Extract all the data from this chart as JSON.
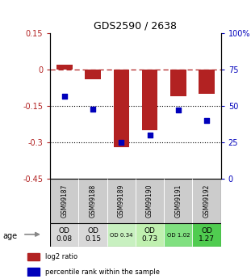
{
  "title": "GDS2590 / 2638",
  "samples": [
    "GSM99187",
    "GSM99188",
    "GSM99189",
    "GSM99190",
    "GSM99191",
    "GSM99192"
  ],
  "log2_ratio": [
    0.02,
    -0.04,
    -0.32,
    -0.25,
    -0.11,
    -0.1
  ],
  "percentile_rank": [
    57,
    48,
    25,
    30,
    47,
    40
  ],
  "ylim_left": [
    -0.45,
    0.15
  ],
  "ylim_right": [
    0,
    100
  ],
  "yticks_left": [
    0.15,
    0.0,
    -0.15,
    -0.3,
    -0.45
  ],
  "yticks_left_labels": [
    "0.15",
    "0",
    "-0.15",
    "-0.3",
    "-0.45"
  ],
  "yticks_right": [
    100,
    75,
    50,
    25,
    0
  ],
  "yticks_right_labels": [
    "100%",
    "75",
    "50",
    "25",
    "0"
  ],
  "bar_color": "#b22222",
  "dot_color": "#0000bb",
  "dot_size": 20,
  "bar_width": 0.55,
  "age_labels": [
    "OD\n0.08",
    "OD\n0.15",
    "OD 0.34",
    "OD\n0.73",
    "OD 1.02",
    "OD\n1.27"
  ],
  "age_bg_colors": [
    "#d8d8d8",
    "#d8d8d8",
    "#c8f0c0",
    "#c0f0b0",
    "#80e080",
    "#50cc50"
  ],
  "age_fontsize_large": [
    true,
    true,
    false,
    true,
    false,
    true
  ],
  "gsm_bg_color": "#cccccc",
  "legend_items": [
    {
      "color": "#b22222",
      "label": "log2 ratio"
    },
    {
      "color": "#0000bb",
      "label": "percentile rank within the sample"
    }
  ]
}
